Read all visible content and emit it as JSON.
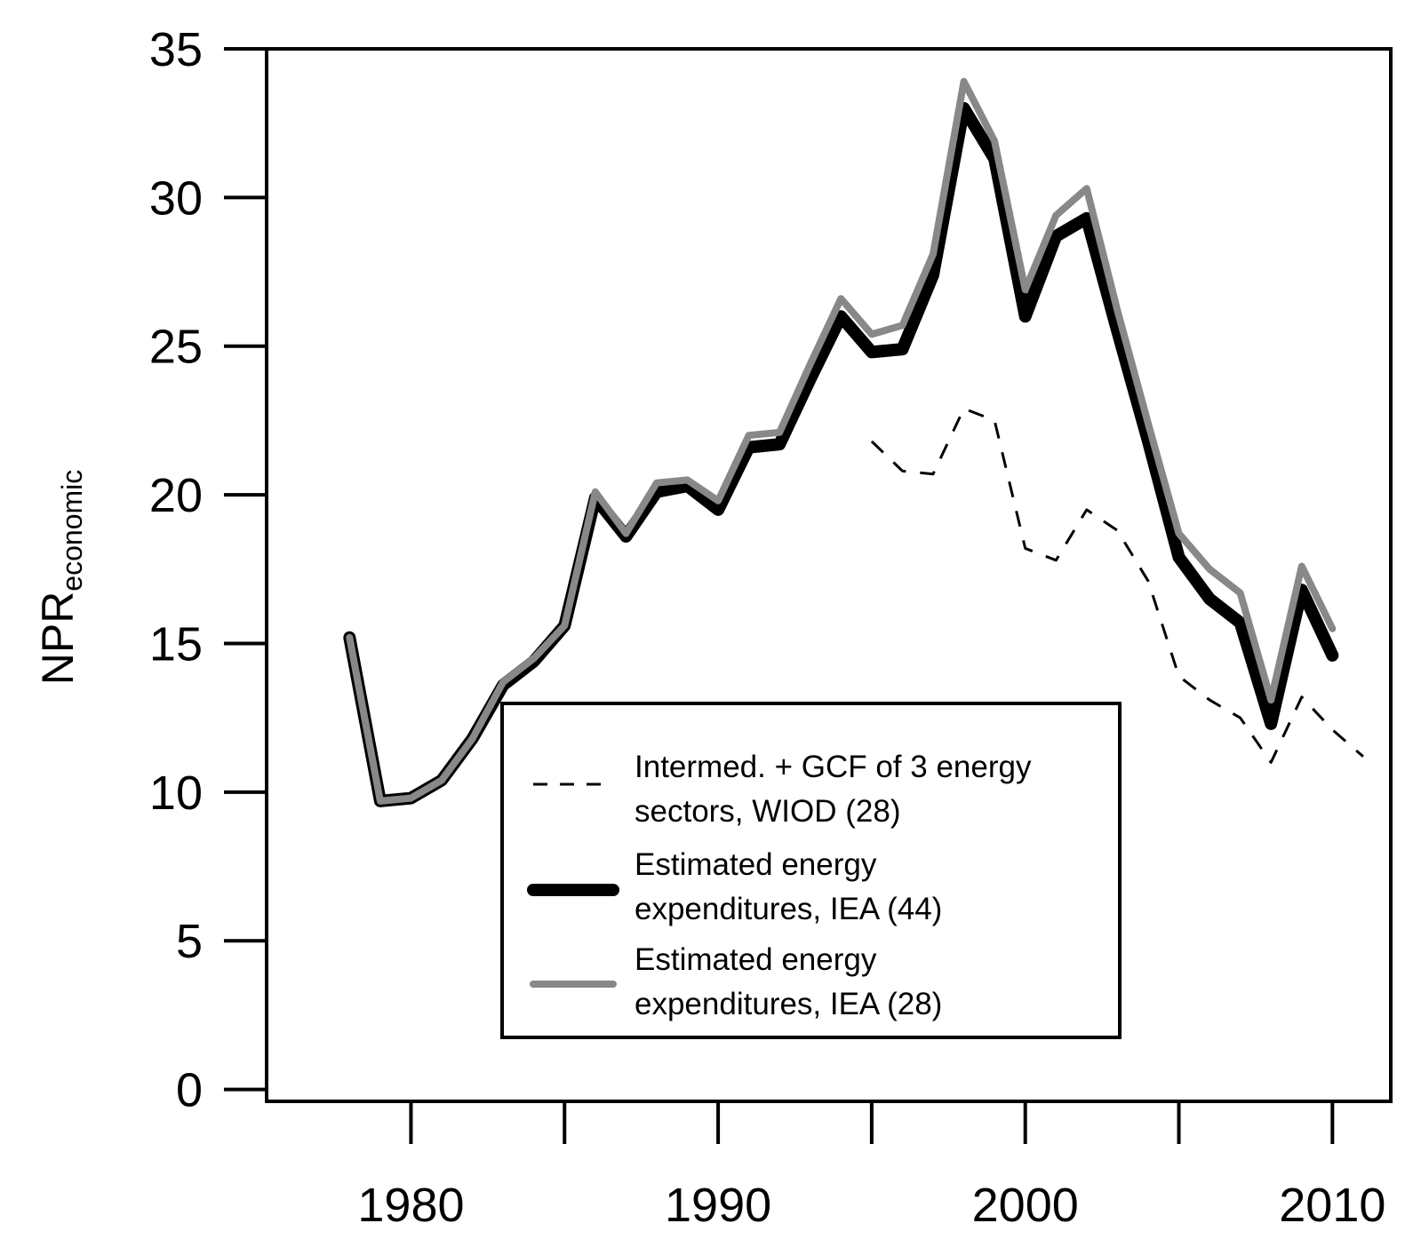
{
  "chart_data": {
    "type": "line",
    "title": "",
    "xlabel": "",
    "ylabel": "NPR",
    "ylabel_subscript": "economic",
    "xlim": [
      1975.3,
      2011.9
    ],
    "ylim": [
      -0.4,
      35
    ],
    "x_ticks": [
      1980,
      1985,
      1990,
      1995,
      2000,
      2005,
      2010
    ],
    "x_tick_labels": [
      "1980",
      "",
      "1990",
      "",
      "2000",
      "",
      "2010"
    ],
    "y_ticks": [
      0,
      5,
      10,
      15,
      20,
      25,
      30,
      35
    ],
    "y_tick_labels": [
      "0",
      "5",
      "10",
      "15",
      "20",
      "25",
      "30",
      "35"
    ],
    "legend_position": "bottom-center",
    "series": [
      {
        "name": "Intermed. + GCF of 3 energy sectors, WIOD (28)",
        "legend_lines": [
          "Intermed. + GCF of 3 energy",
          "sectors, WIOD (28)"
        ],
        "style": "dashed",
        "color": "#000000",
        "x": [
          1995,
          1996,
          1997,
          1998,
          1999,
          2000,
          2001,
          2002,
          2003,
          2004,
          2005,
          2006,
          2007,
          2008,
          2009,
          2010,
          2011
        ],
        "values": [
          21.8,
          20.8,
          20.7,
          22.9,
          22.5,
          18.2,
          17.8,
          19.5,
          18.8,
          17.1,
          13.9,
          13.1,
          12.5,
          11.0,
          13.2,
          12.1,
          11.2
        ]
      },
      {
        "name": "Estimated energy expenditures, IEA (44)",
        "legend_lines": [
          "Estimated energy",
          "expenditures, IEA (44)"
        ],
        "style": "thick",
        "color": "#000000",
        "x": [
          1978,
          1979,
          1980,
          1981,
          1982,
          1983,
          1984,
          1985,
          1986,
          1987,
          1988,
          1989,
          1990,
          1991,
          1992,
          1993,
          1994,
          1995,
          1996,
          1997,
          1998,
          1999,
          2000,
          2001,
          2002,
          2003,
          2004,
          2005,
          2006,
          2007,
          2008,
          2009,
          2010
        ],
        "values": [
          15.2,
          9.7,
          9.8,
          10.4,
          11.8,
          13.6,
          14.4,
          15.6,
          19.9,
          18.6,
          20.1,
          20.3,
          19.5,
          21.6,
          21.7,
          23.9,
          26.0,
          24.8,
          24.9,
          27.4,
          33.0,
          31.3,
          26.0,
          28.7,
          29.3,
          25.5,
          21.8,
          17.9,
          16.5,
          15.7,
          12.3,
          16.8,
          14.6
        ]
      },
      {
        "name": "Estimated energy expenditures, IEA (28)",
        "legend_lines": [
          "Estimated energy",
          "expenditures, IEA (28)"
        ],
        "style": "solid-gray",
        "color": "#888888",
        "x": [
          1978,
          1979,
          1980,
          1981,
          1982,
          1983,
          1984,
          1985,
          1986,
          1987,
          1988,
          1989,
          1990,
          1991,
          1992,
          1993,
          1994,
          1995,
          1996,
          1997,
          1998,
          1999,
          2000,
          2001,
          2002,
          2003,
          2004,
          2005,
          2006,
          2007,
          2008,
          2009,
          2010
        ],
        "values": [
          15.2,
          9.7,
          9.8,
          10.4,
          11.8,
          13.7,
          14.5,
          15.6,
          20.1,
          18.7,
          20.4,
          20.5,
          19.8,
          22.0,
          22.1,
          24.4,
          26.6,
          25.4,
          25.7,
          28.1,
          33.9,
          31.9,
          26.9,
          29.4,
          30.3,
          26.2,
          22.4,
          18.7,
          17.5,
          16.7,
          13.1,
          17.6,
          15.5
        ]
      }
    ]
  }
}
